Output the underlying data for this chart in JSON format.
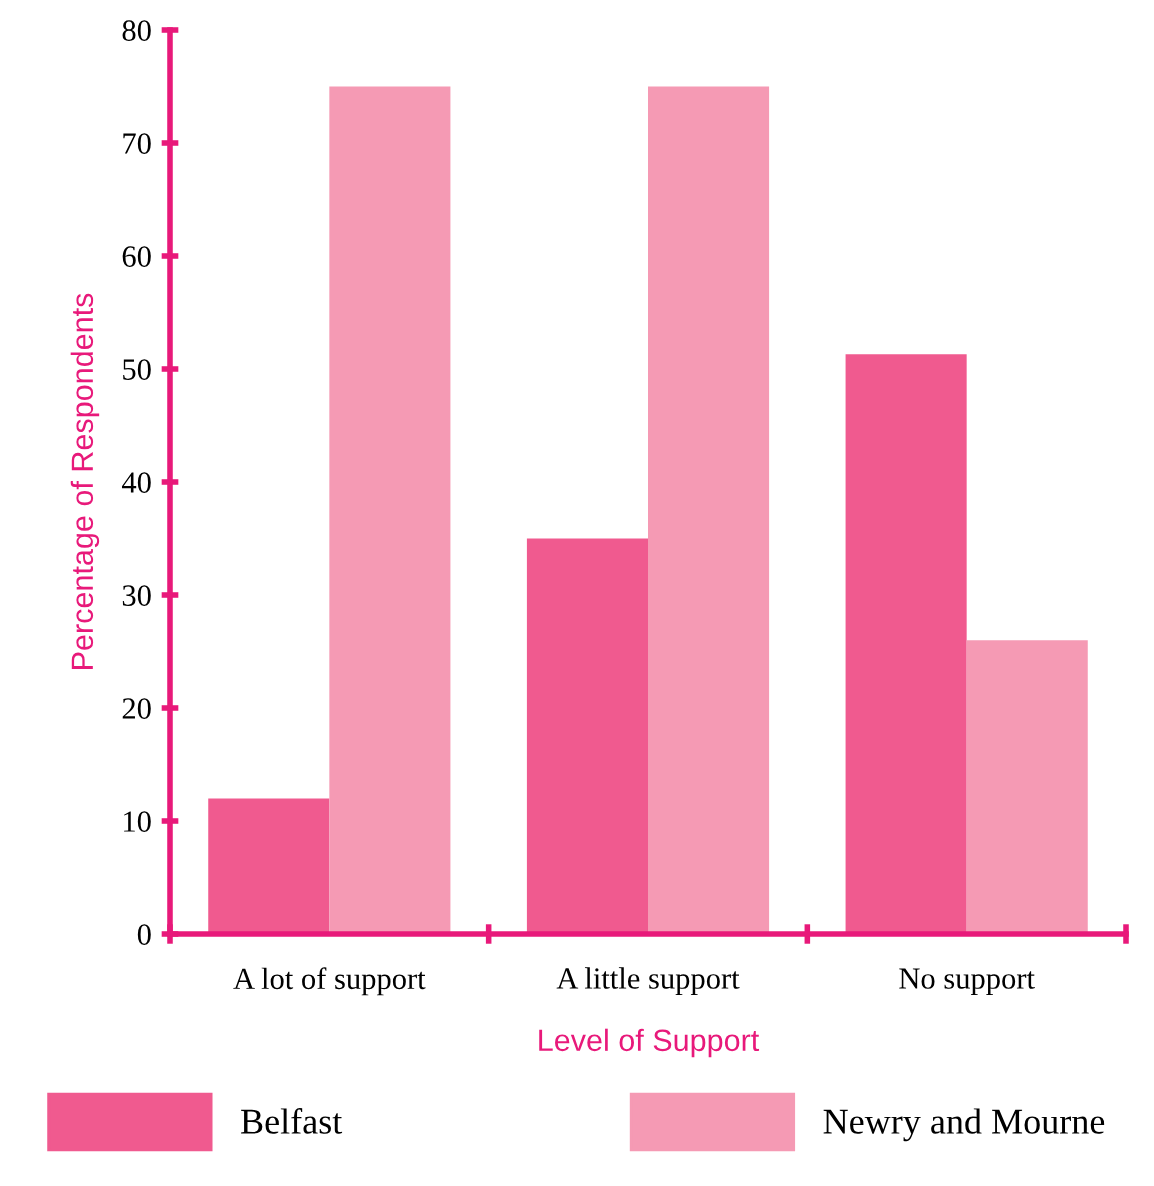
{
  "chart_data": {
    "type": "bar",
    "xlabel": "Level of Support",
    "ylabel": "Percentage of Respondents",
    "categories": [
      "A lot of support",
      "A little support",
      "No support"
    ],
    "series": [
      {
        "name": "Belfast",
        "color": "#f05a8f",
        "values": [
          12,
          35,
          51.3
        ]
      },
      {
        "name": "Newry and Mourne",
        "color": "#f59ab4",
        "values": [
          75,
          75,
          26
        ]
      }
    ],
    "ylim": [
      0,
      80
    ],
    "yticks": [
      0,
      10,
      20,
      30,
      40,
      50,
      60,
      70,
      80
    ],
    "grid": false,
    "legend": "bottom"
  }
}
